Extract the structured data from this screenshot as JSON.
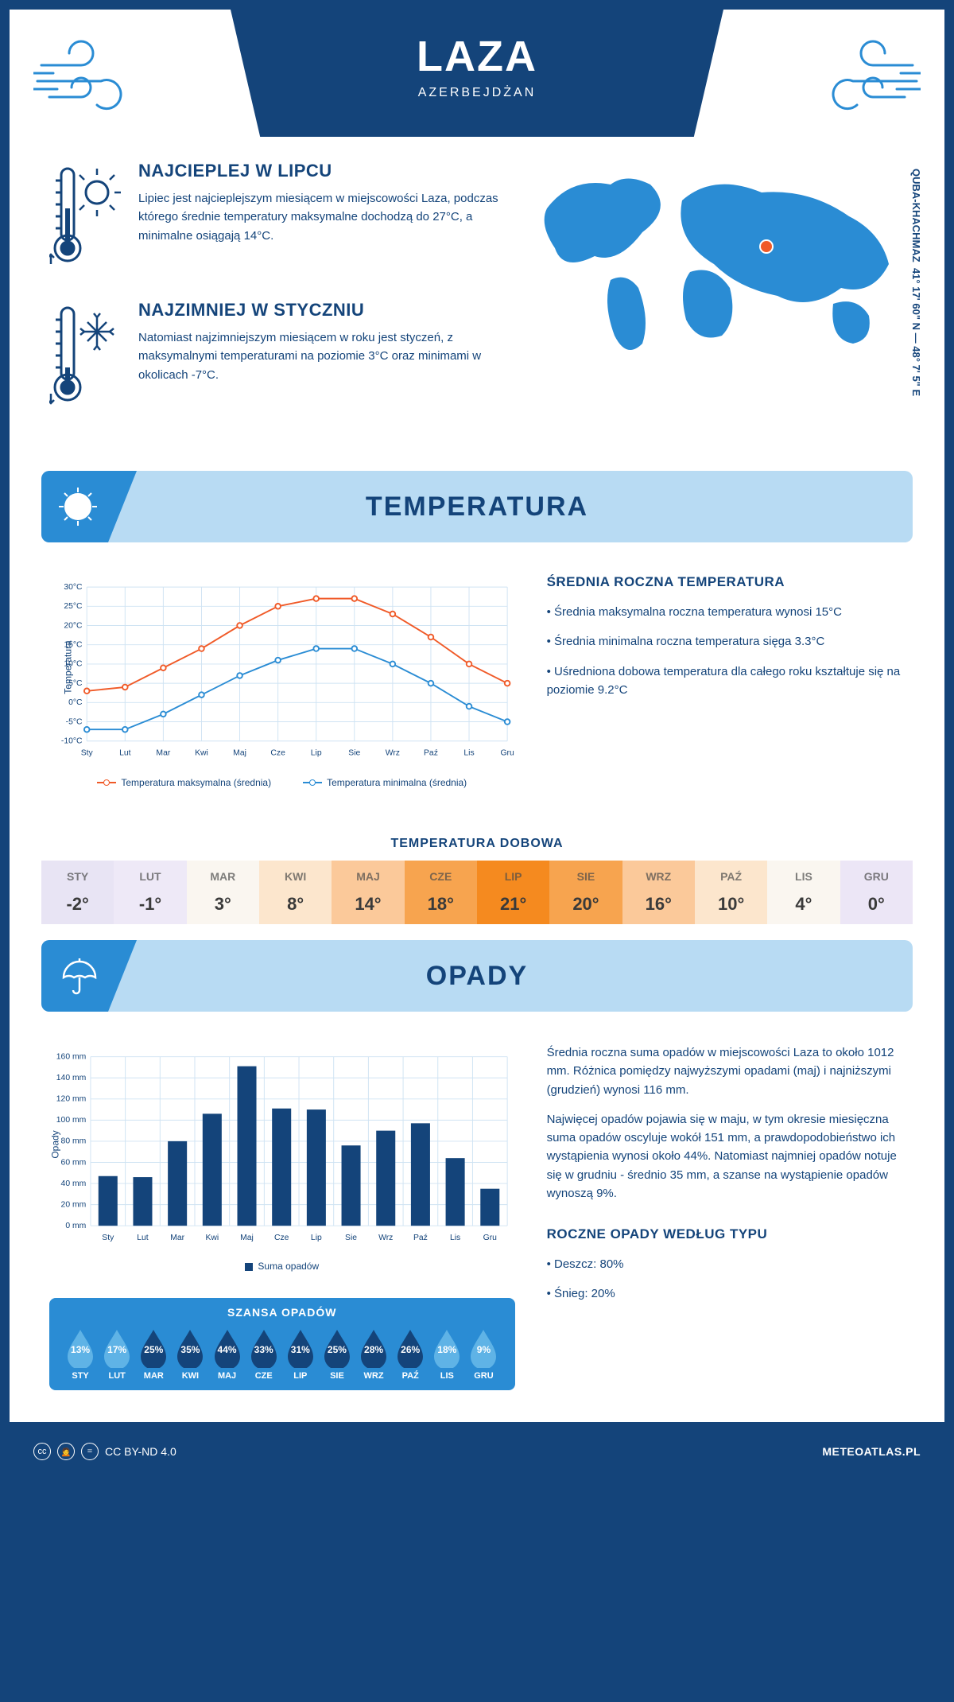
{
  "header": {
    "title": "LAZA",
    "subtitle": "AZERBEJDŻAN",
    "coords": "41° 17' 60\" N — 48° 7' 5\" E",
    "region_label": "QUBA-KHACHMAZ"
  },
  "facts": {
    "warm": {
      "title": "NAJCIEPLEJ W LIPCU",
      "text": "Lipiec jest najcieplejszym miesiącem w miejscowości Laza, podczas którego średnie temperatury maksymalne dochodzą do 27°C, a minimalne osiągają 14°C."
    },
    "cold": {
      "title": "NAJZIMNIEJ W STYCZNIU",
      "text": "Natomiast najzimniejszym miesiącem w roku jest styczeń, z maksymalnymi temperaturami na poziomie 3°C oraz minimami w okolicach -7°C."
    }
  },
  "sections": {
    "temperature_title": "TEMPERATURA",
    "precipitation_title": "OPADY"
  },
  "temp_chart": {
    "type": "line",
    "months": [
      "Sty",
      "Lut",
      "Mar",
      "Kwi",
      "Maj",
      "Cze",
      "Lip",
      "Sie",
      "Wrz",
      "Paź",
      "Lis",
      "Gru"
    ],
    "max_series": [
      3,
      4,
      9,
      14,
      20,
      25,
      27,
      27,
      23,
      17,
      10,
      5
    ],
    "min_series": [
      -7,
      -7,
      -3,
      2,
      7,
      11,
      14,
      14,
      10,
      5,
      -1,
      -5
    ],
    "max_color": "#f05a28",
    "min_color": "#2a8cd4",
    "ylim": [
      -10,
      30
    ],
    "ytick_step": 5,
    "y_suffix": "°C",
    "y_label": "Temperatura",
    "legend_max": "Temperatura maksymalna (średnia)",
    "legend_min": "Temperatura minimalna (średnia)",
    "grid_color": "#cfe3f3"
  },
  "temp_info": {
    "title": "ŚREDNIA ROCZNA TEMPERATURA",
    "bullets": [
      "• Średnia maksymalna roczna temperatura wynosi 15°C",
      "• Średnia minimalna roczna temperatura sięga 3.3°C",
      "• Uśredniona dobowa temperatura dla całego roku kształtuje się na poziomie 9.2°C"
    ]
  },
  "daily_temp": {
    "title": "TEMPERATURA DOBOWA",
    "months": [
      "STY",
      "LUT",
      "MAR",
      "KWI",
      "MAJ",
      "CZE",
      "LIP",
      "SIE",
      "WRZ",
      "PAŹ",
      "LIS",
      "GRU"
    ],
    "values": [
      "-2°",
      "-1°",
      "3°",
      "8°",
      "14°",
      "18°",
      "21°",
      "20°",
      "16°",
      "10°",
      "4°",
      "0°"
    ],
    "colors": [
      "#e8e4f4",
      "#eee9f7",
      "#faf6f0",
      "#fce6cd",
      "#fbc99a",
      "#f7a44f",
      "#f58a1f",
      "#f7a44f",
      "#fbc99a",
      "#fce6cd",
      "#faf6f0",
      "#ece6f6"
    ]
  },
  "precip_chart": {
    "type": "bar",
    "months": [
      "Sty",
      "Lut",
      "Mar",
      "Kwi",
      "Maj",
      "Cze",
      "Lip",
      "Sie",
      "Wrz",
      "Paź",
      "Lis",
      "Gru"
    ],
    "values": [
      47,
      46,
      80,
      106,
      151,
      111,
      110,
      76,
      90,
      97,
      64,
      35
    ],
    "bar_color": "#14447a",
    "ylim": [
      0,
      160
    ],
    "ytick_step": 20,
    "y_suffix": " mm",
    "y_label": "Opady",
    "legend": "Suma opadów",
    "grid_color": "#cfe3f3"
  },
  "precip_info": {
    "p1": "Średnia roczna suma opadów w miejscowości Laza to około 1012 mm. Różnica pomiędzy najwyższymi opadami (maj) i najniższymi (grudzień) wynosi 116 mm.",
    "p2": "Najwięcej opadów pojawia się w maju, w tym okresie miesięczna suma opadów oscyluje wokół 151 mm, a prawdopodobieństwo ich wystąpienia wynosi około 44%. Natomiast najmniej opadów notuje się w grudniu - średnio 35 mm, a szanse na wystąpienie opadów wynoszą 9%.",
    "types_title": "ROCZNE OPADY WEDŁUG TYPU",
    "types": [
      "• Deszcz: 80%",
      "• Śnieg: 20%"
    ]
  },
  "chance": {
    "title": "SZANSA OPADÓW",
    "months": [
      "STY",
      "LUT",
      "MAR",
      "KWI",
      "MAJ",
      "CZE",
      "LIP",
      "SIE",
      "WRZ",
      "PAŹ",
      "LIS",
      "GRU"
    ],
    "values": [
      "13%",
      "17%",
      "25%",
      "35%",
      "44%",
      "33%",
      "31%",
      "25%",
      "28%",
      "26%",
      "18%",
      "9%"
    ],
    "light_color": "#5fb3e6",
    "dark_color": "#14447a",
    "dark_threshold": 25
  },
  "footer": {
    "license": "CC BY-ND 4.0",
    "brand": "METEOATLAS.PL"
  }
}
